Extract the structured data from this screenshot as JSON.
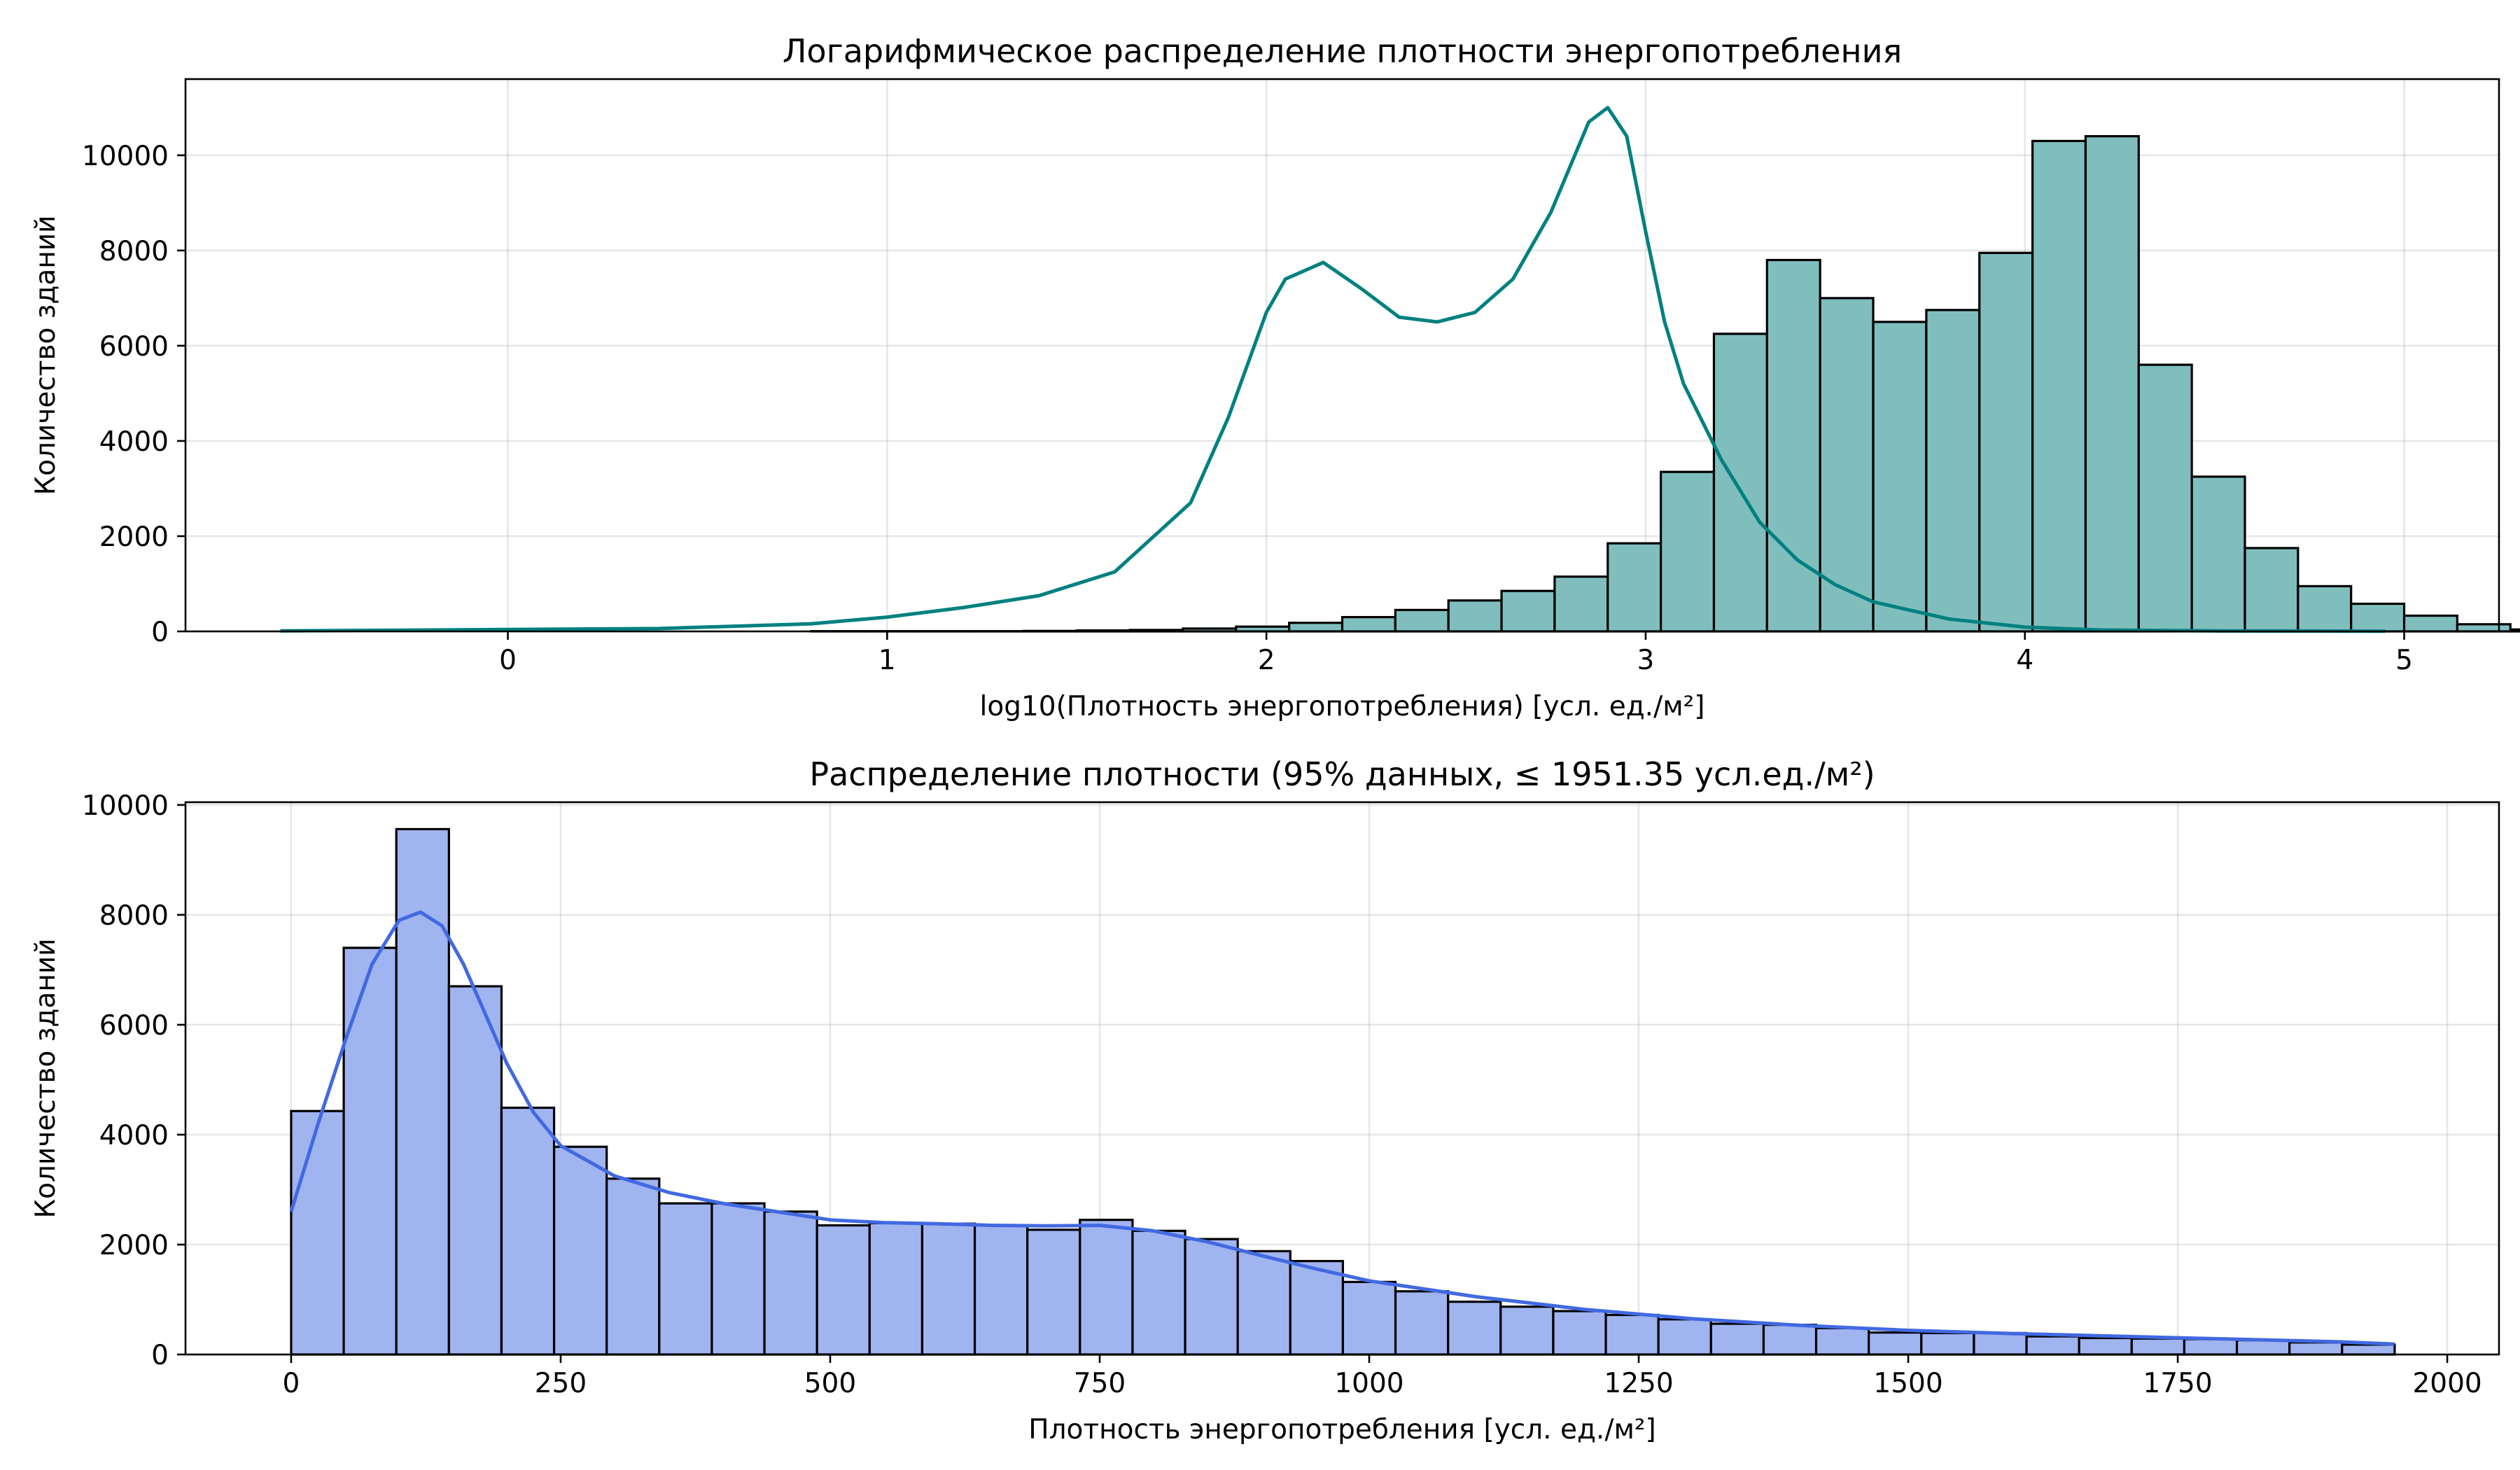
{
  "chart_data": [
    {
      "type": "bar",
      "subtype": "histogram-with-kde",
      "title": "Логарифмическое распределение плотности энергопотребления",
      "xlabel": "log10(Плотность энергопотребления) [усл. ед./м²]",
      "ylabel": "Количество зданий",
      "xlim": [
        -0.85,
        5.25
      ],
      "ylim": [
        0,
        11600
      ],
      "x_ticks": [
        0,
        1,
        2,
        3,
        4,
        5
      ],
      "y_ticks": [
        0,
        2000,
        4000,
        6000,
        8000,
        10000
      ],
      "grid": true,
      "colors": {
        "bar_fill": "#80bebe",
        "bar_edge": "#000000",
        "kde_line": "#008080"
      },
      "bin_start": -0.6,
      "bin_width": 0.14,
      "values": [
        0,
        0,
        0,
        0,
        0,
        0,
        0,
        0,
        0,
        0,
        5,
        5,
        5,
        5,
        10,
        20,
        30,
        60,
        100,
        180,
        300,
        450,
        650,
        850,
        1150,
        1850,
        3350,
        6250,
        7800,
        7000,
        6500,
        6750,
        7950,
        10300,
        10400,
        5600,
        3250,
        1750,
        950,
        580,
        330,
        150,
        40
      ],
      "kde": {
        "x": [
          -0.6,
          0.4,
          0.8,
          1.0,
          1.2,
          1.4,
          1.6,
          1.8,
          1.9,
          2.0,
          2.05,
          2.15,
          2.25,
          2.35,
          2.45,
          2.55,
          2.65,
          2.75,
          2.85,
          2.9,
          2.95,
          3.0,
          3.05,
          3.1,
          3.2,
          3.3,
          3.4,
          3.5,
          3.6,
          3.8,
          4.0,
          4.2,
          4.5,
          4.95
        ],
        "y": [
          10,
          60,
          160,
          300,
          500,
          750,
          1250,
          2700,
          4500,
          6700,
          7400,
          7750,
          7200,
          6600,
          6500,
          6700,
          7400,
          8800,
          10700,
          11000,
          10400,
          8400,
          6500,
          5200,
          3600,
          2300,
          1500,
          980,
          620,
          260,
          90,
          30,
          10,
          5
        ]
      }
    },
    {
      "type": "bar",
      "subtype": "histogram-with-kde",
      "title": "Распределение плотности (95% данных, ≤ 1951.35 усл.ед./м²)",
      "xlabel": "Плотность энергопотребления [усл. ед./м²]",
      "ylabel": "Количество зданий",
      "xlim": [
        -98,
        2048
      ],
      "ylim": [
        0,
        10050
      ],
      "x_ticks": [
        0,
        250,
        500,
        750,
        1000,
        1250,
        1500,
        1750,
        2000
      ],
      "y_ticks": [
        0,
        2000,
        4000,
        6000,
        8000,
        10000
      ],
      "grid": true,
      "colors": {
        "bar_fill": "#a0b4f0",
        "bar_edge": "#000000",
        "kde_line": "#4169e1"
      },
      "bin_start": 0,
      "bin_width": 48.78,
      "values": [
        4430,
        7400,
        9560,
        6700,
        4490,
        3780,
        3200,
        2750,
        2750,
        2600,
        2350,
        2390,
        2380,
        2350,
        2270,
        2450,
        2250,
        2100,
        1880,
        1700,
        1320,
        1150,
        960,
        870,
        790,
        720,
        640,
        560,
        540,
        480,
        400,
        390,
        390,
        330,
        300,
        290,
        280,
        260,
        220,
        180
      ],
      "kde": {
        "x": [
          0,
          25,
          50,
          75,
          100,
          120,
          140,
          160,
          180,
          200,
          225,
          250,
          300,
          350,
          400,
          450,
          500,
          550,
          600,
          650,
          700,
          750,
          800,
          850,
          900,
          950,
          1000,
          1100,
          1200,
          1300,
          1400,
          1500,
          1600,
          1700,
          1800,
          1900,
          1951
        ],
        "y": [
          2600,
          4200,
          5700,
          7100,
          7900,
          8050,
          7800,
          7100,
          6200,
          5300,
          4400,
          3800,
          3250,
          2950,
          2750,
          2600,
          2450,
          2400,
          2380,
          2350,
          2340,
          2350,
          2250,
          2050,
          1800,
          1560,
          1340,
          1050,
          820,
          650,
          530,
          440,
          380,
          330,
          280,
          230,
          190
        ]
      }
    }
  ]
}
